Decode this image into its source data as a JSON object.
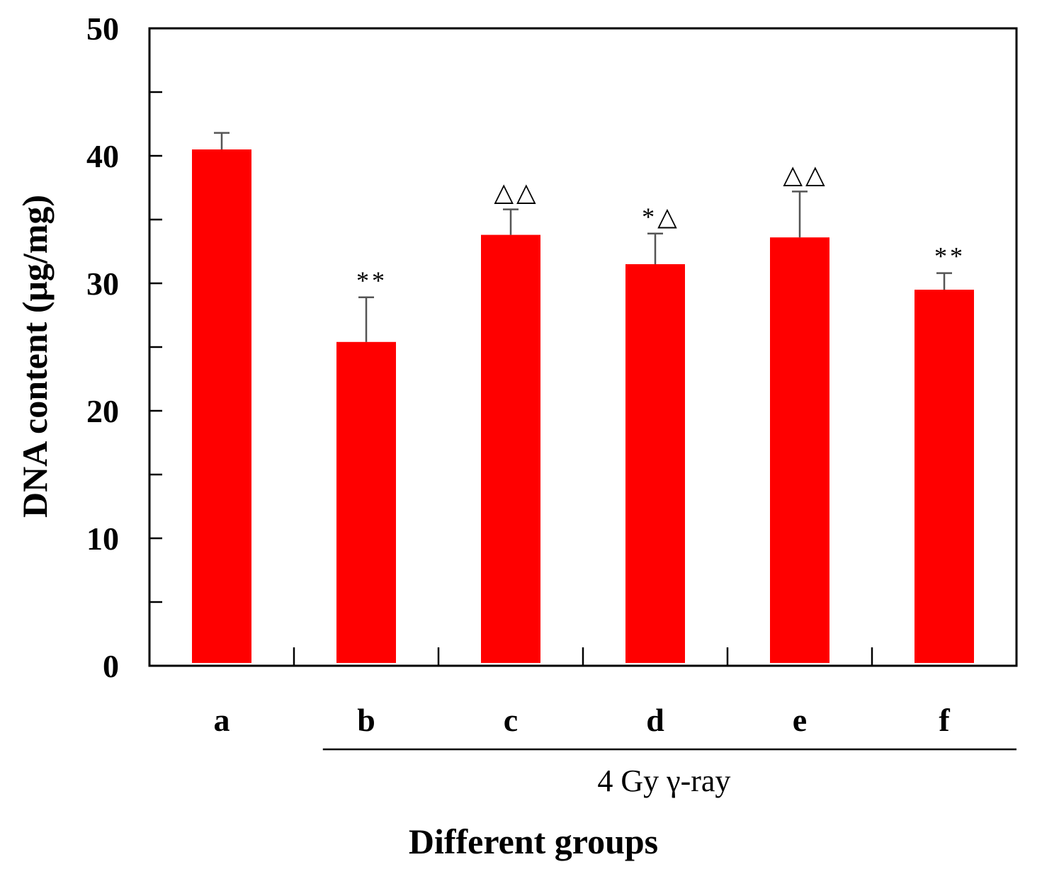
{
  "chart_data": {
    "type": "bar",
    "title": "",
    "xlabel": "Different groups",
    "ylabel": "DNA content (μg/mg)",
    "ylim": [
      0,
      50
    ],
    "y_major_ticks": [
      0,
      10,
      20,
      30,
      40,
      50
    ],
    "y_minor_ticks": [
      5,
      15,
      25,
      35,
      45
    ],
    "categories": [
      "a",
      "b",
      "c",
      "d",
      "e",
      "f"
    ],
    "values": [
      40.5,
      25.4,
      33.8,
      31.5,
      33.6,
      29.5
    ],
    "error": [
      1.3,
      3.5,
      2.0,
      2.4,
      3.6,
      1.3
    ],
    "annotations": [
      "",
      "**",
      "△△",
      "*△",
      "△△",
      "**"
    ],
    "group_bracket": {
      "label": "4 Gy γ-ray",
      "from": "b",
      "to": "f"
    },
    "bar_color": "#ff0000",
    "error_bar_color": "#555555",
    "grid": false,
    "legend": "none"
  }
}
